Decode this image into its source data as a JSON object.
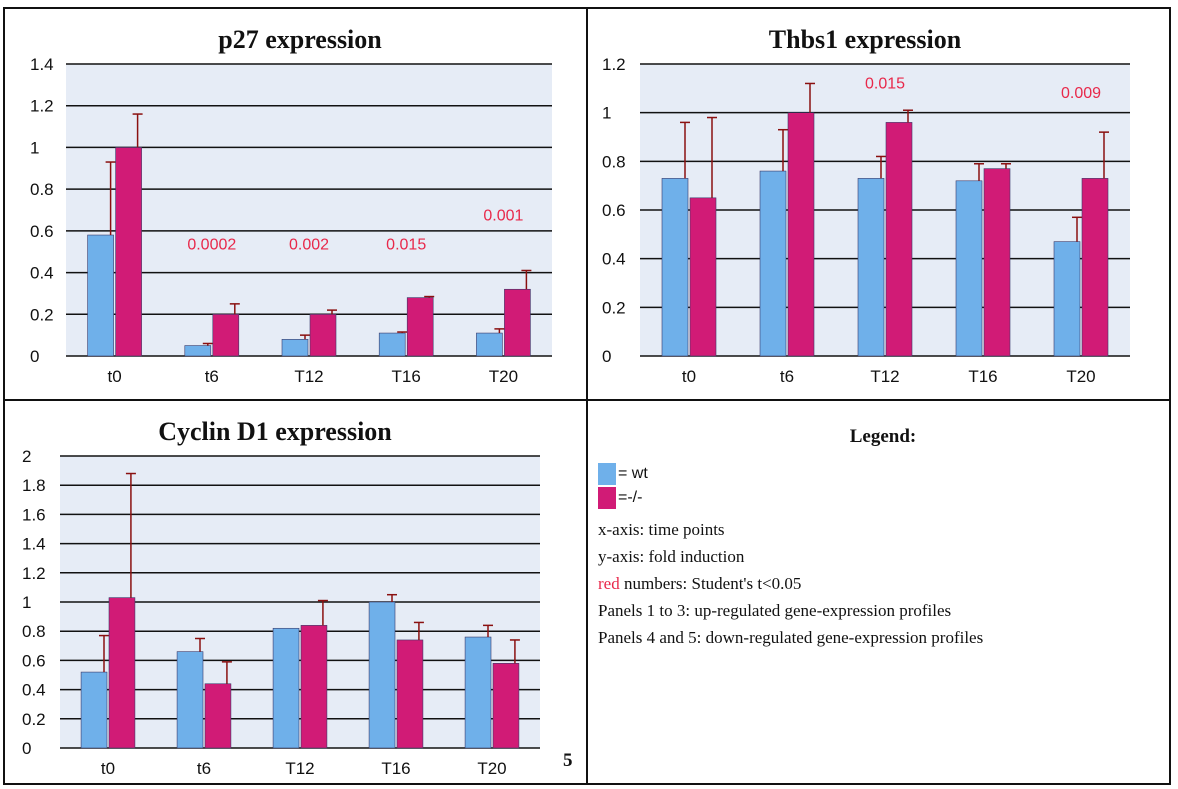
{
  "chart_data": [
    {
      "type": "bar",
      "title": "p27 expression",
      "categories": [
        "t0",
        "t6",
        "T12",
        "T16",
        "T20"
      ],
      "ylim": [
        0,
        1.4
      ],
      "yticks": [
        "0",
        "0.2",
        "0.4",
        "0.6",
        "0.8",
        "1",
        "1.2",
        "1.4"
      ],
      "grid": true,
      "series": [
        {
          "key": "wt",
          "values": [
            0.58,
            0.05,
            0.08,
            0.11,
            0.11
          ],
          "errors": [
            0.35,
            0.01,
            0.02,
            0.005,
            0.02
          ]
        },
        {
          "key": "ko",
          "values": [
            1.0,
            0.2,
            0.2,
            0.28,
            0.32
          ],
          "errors": [
            0.16,
            0.05,
            0.02,
            0.005,
            0.09
          ]
        }
      ],
      "annotations": [
        {
          "category": "t6",
          "text": "0.0002",
          "y": 0.51
        },
        {
          "category": "T12",
          "text": "0.002",
          "y": 0.51
        },
        {
          "category": "T16",
          "text": "0.015",
          "y": 0.51
        },
        {
          "category": "T20",
          "text": "0.001",
          "y": 0.65
        }
      ]
    },
    {
      "type": "bar",
      "title": "Thbs1 expression",
      "categories": [
        "t0",
        "t6",
        "T12",
        "T16",
        "T20"
      ],
      "ylim": [
        0,
        1.2
      ],
      "yticks": [
        "0",
        "0.2",
        "0.4",
        "0.6",
        "0.8",
        "1",
        "1.2"
      ],
      "grid": true,
      "series": [
        {
          "key": "wt",
          "values": [
            0.73,
            0.76,
            0.73,
            0.72,
            0.47
          ],
          "errors": [
            0.23,
            0.17,
            0.09,
            0.07,
            0.1
          ]
        },
        {
          "key": "ko",
          "values": [
            0.65,
            1.0,
            0.96,
            0.77,
            0.73
          ],
          "errors": [
            0.33,
            0.12,
            0.05,
            0.02,
            0.19
          ]
        }
      ],
      "annotations": [
        {
          "category": "T12",
          "text": "0.015",
          "y": 1.1
        },
        {
          "category": "T20",
          "text": "0.009",
          "y": 1.06
        }
      ]
    },
    {
      "type": "bar",
      "title": "Cyclin D1 expression",
      "categories": [
        "t0",
        "t6",
        "T12",
        "T16",
        "T20"
      ],
      "ylim": [
        0,
        2
      ],
      "yticks": [
        "0",
        "0.2",
        "0.4",
        "0.6",
        "0.8",
        "1",
        "1.2",
        "1.4",
        "1.6",
        "1.8",
        "2"
      ],
      "grid": true,
      "series": [
        {
          "key": "wt",
          "values": [
            0.52,
            0.66,
            0.82,
            1.0,
            0.76
          ],
          "errors": [
            0.25,
            0.09,
            0.0,
            0.05,
            0.08
          ]
        },
        {
          "key": "ko",
          "values": [
            1.03,
            0.44,
            0.84,
            0.74,
            0.58
          ],
          "errors": [
            0.85,
            0.15,
            0.17,
            0.12,
            0.16
          ]
        }
      ],
      "annotations": []
    }
  ],
  "colors": {
    "wt": "#6fb0ea",
    "ko": "#d11b76",
    "plot_bg": "#e6ecf6",
    "pvalue": "#e8284a"
  },
  "legend": {
    "title": "Legend:",
    "wt_label": "= wt",
    "ko_label": "=-/-",
    "lines": {
      "x_axis": "x-axis: time points",
      "y_axis": "y-axis: fold induction",
      "red_word": "red",
      "red_rest": " numbers: Student's t<0.05",
      "panels_up": "Panels 1 to 3: up-regulated gene-expression profiles",
      "panels_down": "Panels 4 and 5: down-regulated gene-expression profiles"
    }
  },
  "page_number": "5"
}
